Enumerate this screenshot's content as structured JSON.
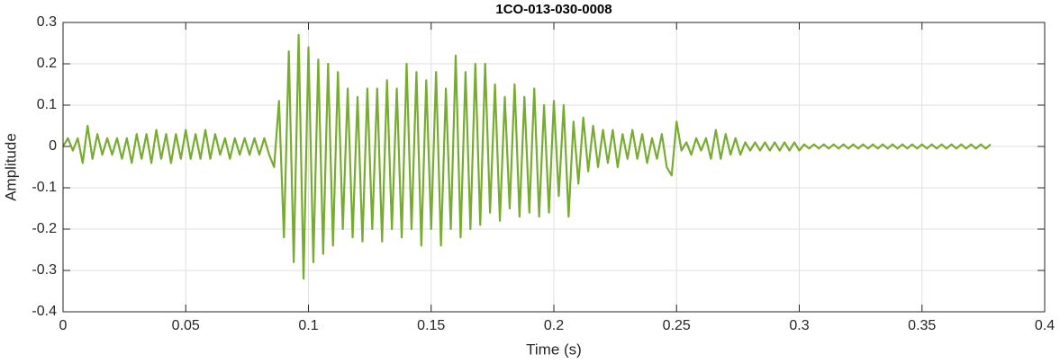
{
  "chart_data": {
    "type": "line",
    "title": "1CO-013-030-0008",
    "x_label": "Time (s)",
    "y_label": "Amplitude",
    "color": "#77ac30",
    "grid": true,
    "xlim": [
      0,
      0.4
    ],
    "xticks": [
      0,
      0.05,
      0.1,
      0.15,
      0.2,
      0.25,
      0.3,
      0.35,
      0.4
    ],
    "ylim": [
      -0.4,
      0.3
    ],
    "yticks": [
      -0.4,
      -0.3,
      -0.2,
      -0.1,
      0,
      0.1,
      0.2,
      0.3
    ],
    "x": [
      0,
      0.002,
      0.004,
      0.006,
      0.008,
      0.01,
      0.012,
      0.014,
      0.016,
      0.018,
      0.02,
      0.022,
      0.024,
      0.026,
      0.028,
      0.03,
      0.032,
      0.034,
      0.036,
      0.038,
      0.04,
      0.042,
      0.044,
      0.046,
      0.048,
      0.05,
      0.052,
      0.054,
      0.056,
      0.058,
      0.06,
      0.062,
      0.064,
      0.066,
      0.068,
      0.07,
      0.072,
      0.074,
      0.076,
      0.078,
      0.08,
      0.082,
      0.084,
      0.086,
      0.088,
      0.09,
      0.092,
      0.094,
      0.096,
      0.098,
      0.1,
      0.102,
      0.104,
      0.106,
      0.108,
      0.11,
      0.112,
      0.114,
      0.116,
      0.118,
      0.12,
      0.122,
      0.124,
      0.126,
      0.128,
      0.13,
      0.132,
      0.134,
      0.136,
      0.138,
      0.14,
      0.142,
      0.144,
      0.146,
      0.148,
      0.15,
      0.152,
      0.154,
      0.156,
      0.158,
      0.16,
      0.162,
      0.164,
      0.166,
      0.168,
      0.17,
      0.172,
      0.174,
      0.176,
      0.178,
      0.18,
      0.182,
      0.184,
      0.186,
      0.188,
      0.19,
      0.192,
      0.194,
      0.196,
      0.198,
      0.2,
      0.202,
      0.204,
      0.206,
      0.208,
      0.21,
      0.212,
      0.214,
      0.216,
      0.218,
      0.22,
      0.222,
      0.224,
      0.226,
      0.228,
      0.23,
      0.232,
      0.234,
      0.236,
      0.238,
      0.24,
      0.242,
      0.244,
      0.246,
      0.248,
      0.25,
      0.252,
      0.254,
      0.256,
      0.258,
      0.26,
      0.262,
      0.264,
      0.266,
      0.268,
      0.27,
      0.272,
      0.274,
      0.276,
      0.278,
      0.28,
      0.282,
      0.284,
      0.286,
      0.288,
      0.29,
      0.292,
      0.294,
      0.296,
      0.298,
      0.3,
      0.302,
      0.304,
      0.306,
      0.308,
      0.31,
      0.312,
      0.314,
      0.316,
      0.318,
      0.32,
      0.322,
      0.324,
      0.326,
      0.328,
      0.33,
      0.332,
      0.334,
      0.336,
      0.338,
      0.34,
      0.342,
      0.344,
      0.346,
      0.348,
      0.35,
      0.352,
      0.354,
      0.356,
      0.358,
      0.36,
      0.362,
      0.364,
      0.366,
      0.368,
      0.37,
      0.372,
      0.374,
      0.376,
      0.378
    ],
    "values": [
      0,
      0.02,
      -0.01,
      0.02,
      -0.04,
      0.05,
      -0.03,
      0.03,
      -0.02,
      0.02,
      -0.02,
      0.02,
      -0.03,
      0.02,
      -0.04,
      0.03,
      -0.03,
      0.03,
      -0.04,
      0.04,
      -0.03,
      0.03,
      -0.04,
      0.03,
      -0.03,
      0.04,
      -0.03,
      0.03,
      -0.03,
      0.04,
      -0.03,
      0.03,
      -0.02,
      0.02,
      -0.03,
      0.02,
      -0.02,
      0.02,
      -0.02,
      0.02,
      -0.02,
      0.02,
      -0.02,
      -0.05,
      0.11,
      -0.22,
      0.23,
      -0.28,
      0.27,
      -0.32,
      0.24,
      -0.28,
      0.21,
      -0.26,
      0.2,
      -0.24,
      0.18,
      -0.2,
      0.14,
      -0.22,
      0.12,
      -0.23,
      0.14,
      -0.2,
      0.14,
      -0.23,
      0.16,
      -0.2,
      0.14,
      -0.22,
      0.2,
      -0.2,
      0.18,
      -0.24,
      0.16,
      -0.2,
      0.18,
      -0.24,
      0.14,
      -0.2,
      0.22,
      -0.22,
      0.18,
      -0.2,
      0.2,
      -0.19,
      0.2,
      -0.16,
      0.15,
      -0.18,
      0.12,
      -0.15,
      0.15,
      -0.17,
      0.12,
      -0.16,
      0.14,
      -0.17,
      0.1,
      -0.16,
      0.11,
      -0.12,
      0.1,
      -0.17,
      0.06,
      -0.09,
      0.07,
      -0.06,
      0.05,
      -0.05,
      0.04,
      -0.04,
      0.04,
      -0.05,
      0.03,
      -0.03,
      0.04,
      -0.03,
      0.03,
      -0.04,
      0.02,
      -0.03,
      0.03,
      -0.05,
      -0.07,
      0.06,
      -0.01,
      0.01,
      -0.02,
      0.02,
      -0.01,
      0.02,
      -0.03,
      0.04,
      -0.03,
      0.03,
      -0.02,
      0.02,
      -0.02,
      0.01,
      -0.01,
      0.01,
      -0.01,
      0.01,
      -0.01,
      0.01,
      -0.01,
      0.01,
      -0.01,
      0.01,
      -0.01,
      0.005,
      -0.005,
      0.005,
      -0.005,
      0.005,
      -0.005,
      0.005,
      -0.005,
      0.005,
      -0.005,
      0.005,
      -0.005,
      0.005,
      -0.005,
      0.005,
      -0.005,
      0.005,
      -0.005,
      0.005,
      -0.005,
      0.005,
      -0.005,
      0.005,
      -0.005,
      0.005,
      -0.005,
      0.005,
      -0.005,
      0.005,
      -0.005,
      0.005,
      -0.005,
      0.005,
      -0.005,
      0.005,
      -0.005,
      0.005,
      -0.005,
      0.005
    ]
  }
}
